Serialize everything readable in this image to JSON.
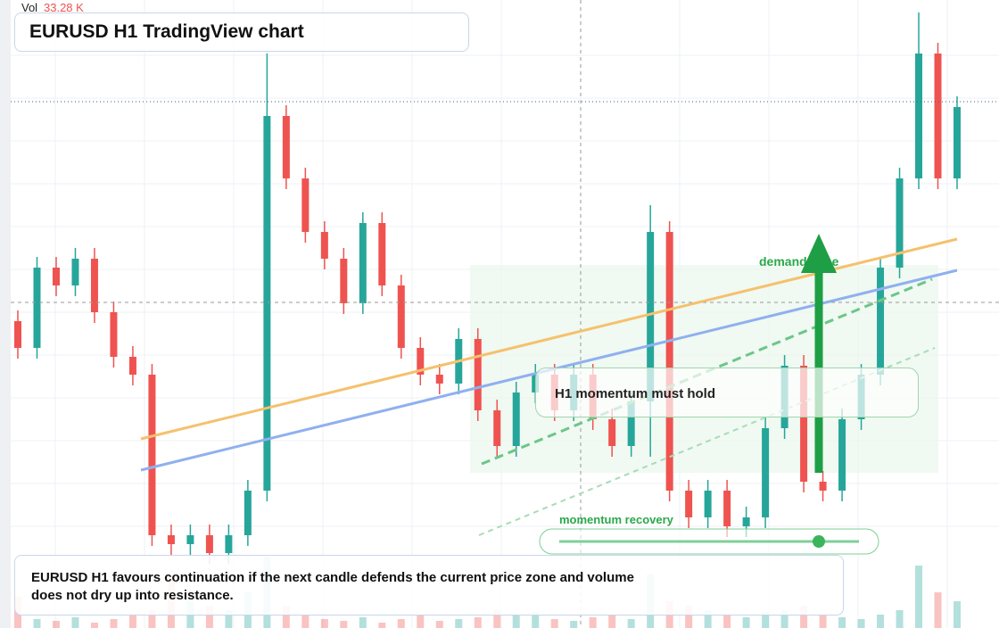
{
  "chart_data": {
    "type": "candlestick",
    "title": "EURUSD H1 TradingView chart",
    "volume_label": "Vol",
    "volume_readout": "33.28 K",
    "up_color": "#26a69a",
    "down_color": "#ef5350",
    "ylim": [
      0,
      704
    ],
    "vlim": [
      0,
      100
    ],
    "open": [
      344,
      314,
      404,
      384,
      414,
      354,
      304,
      284,
      104,
      94,
      104,
      84,
      104,
      154,
      574,
      504,
      444,
      414,
      364,
      454,
      384,
      314,
      284,
      274,
      324,
      244,
      204,
      264,
      284,
      244,
      284,
      234,
      204,
      254,
      444,
      154,
      124,
      154,
      114,
      124,
      224,
      294,
      164,
      154,
      234,
      284,
      404,
      504,
      644,
      504
    ],
    "high": [
      356,
      416,
      416,
      426,
      426,
      366,
      316,
      296,
      116,
      116,
      116,
      116,
      166,
      644,
      586,
      516,
      456,
      426,
      466,
      466,
      396,
      326,
      296,
      336,
      336,
      256,
      276,
      296,
      296,
      296,
      296,
      246,
      266,
      474,
      456,
      166,
      166,
      166,
      136,
      236,
      306,
      306,
      176,
      246,
      296,
      416,
      516,
      690,
      656,
      596
    ],
    "low": [
      302,
      302,
      372,
      372,
      342,
      292,
      272,
      92,
      82,
      82,
      72,
      72,
      92,
      142,
      492,
      432,
      402,
      352,
      352,
      372,
      302,
      272,
      262,
      262,
      232,
      192,
      192,
      252,
      232,
      232,
      222,
      192,
      192,
      192,
      142,
      112,
      112,
      102,
      102,
      112,
      212,
      152,
      142,
      142,
      222,
      272,
      392,
      492,
      492,
      492
    ],
    "close": [
      314,
      404,
      384,
      414,
      354,
      304,
      284,
      104,
      94,
      104,
      84,
      104,
      154,
      574,
      504,
      444,
      414,
      364,
      454,
      384,
      314,
      284,
      274,
      324,
      244,
      204,
      264,
      284,
      244,
      284,
      234,
      204,
      254,
      444,
      154,
      124,
      154,
      114,
      124,
      224,
      294,
      164,
      154,
      234,
      284,
      404,
      504,
      644,
      504,
      584
    ],
    "volume": [
      35,
      10,
      8,
      12,
      6,
      10,
      15,
      20,
      60,
      30,
      25,
      20,
      40,
      80,
      25,
      15,
      10,
      8,
      12,
      6,
      10,
      15,
      8,
      10,
      12,
      20,
      15,
      18,
      10,
      8,
      12,
      15,
      10,
      60,
      30,
      25,
      20,
      15,
      12,
      18,
      20,
      25,
      15,
      12,
      10,
      15,
      20,
      70,
      40,
      30
    ],
    "annotations": {
      "momentum": "H1 momentum must hold",
      "zone": "demand zone",
      "recovery": "momentum recovery"
    },
    "note": "EURUSD H1 favours continuation if the next candle defends the current price zone and volume does not dry up into resistance."
  }
}
